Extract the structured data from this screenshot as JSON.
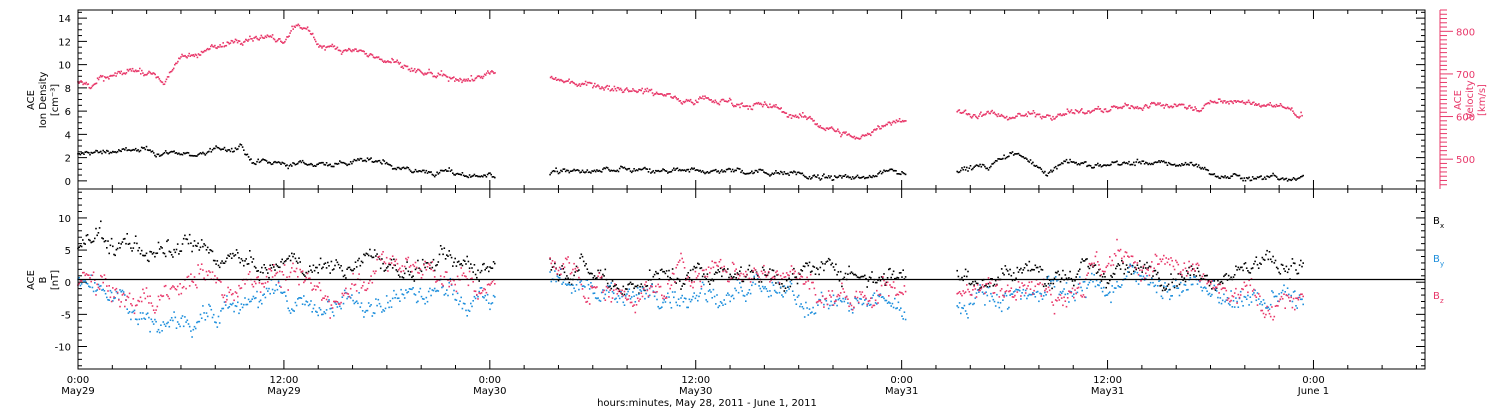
{
  "chart_data": [
    {
      "type": "scatter",
      "title": "",
      "xlabel": "hours:minutes, May 28, 2011 - June 1, 2011",
      "x_ticks": [
        {
          "hour": 0,
          "time": "0:00",
          "date": "May29"
        },
        {
          "hour": 12,
          "time": "12:00",
          "date": "May29"
        },
        {
          "hour": 24,
          "time": "0:00",
          "date": "May30"
        },
        {
          "hour": 36,
          "time": "12:00",
          "date": "May30"
        },
        {
          "hour": 48,
          "time": "0:00",
          "date": "May31"
        },
        {
          "hour": 60,
          "time": "12:00",
          "date": "May31"
        },
        {
          "hour": 72,
          "time": "0:00",
          "date": "June 1"
        }
      ],
      "xlim_hours": [
        0,
        78.5
      ],
      "data_gaps_hours": [
        [
          24.3,
          27.5
        ],
        [
          48.3,
          51.2
        ],
        [
          71.4,
          78.5
        ]
      ],
      "left_axis": {
        "ylabel_lines": [
          "ACE",
          "Ion Density",
          "[cm⁻³]"
        ],
        "ylim": [
          -0.7,
          14.7
        ],
        "ticks": [
          0,
          2,
          4,
          6,
          8,
          10,
          12,
          14
        ]
      },
      "right_axis": {
        "ylabel_lines": [
          "ACE",
          "Velocity",
          "[km/s]"
        ],
        "ylim": [
          430,
          850
        ],
        "ticks": [
          500,
          600,
          700,
          800
        ],
        "color": "#e8386a"
      },
      "series": [
        {
          "name": "",
          "axis": "left",
          "color": "#000000",
          "knots": [
            [
              0.0,
              2.2
            ],
            [
              1.0,
              2.5
            ],
            [
              3.0,
              2.6
            ],
            [
              5.0,
              2.4
            ],
            [
              7.0,
              2.3
            ],
            [
              9.0,
              2.8
            ],
            [
              9.5,
              3.2
            ],
            [
              10.0,
              1.6
            ],
            [
              12.0,
              1.4
            ],
            [
              14.0,
              1.5
            ],
            [
              16.0,
              1.6
            ],
            [
              18.0,
              1.7
            ],
            [
              18.6,
              1.2
            ],
            [
              20.0,
              0.8
            ],
            [
              22.0,
              0.6
            ],
            [
              24.0,
              0.5
            ],
            [
              27.5,
              0.8
            ],
            [
              30.0,
              0.8
            ],
            [
              32.0,
              0.9
            ],
            [
              34.0,
              0.7
            ],
            [
              36.0,
              0.8
            ],
            [
              38.0,
              0.9
            ],
            [
              40.0,
              0.8
            ],
            [
              42.0,
              0.8
            ],
            [
              43.0,
              0.2
            ],
            [
              46.0,
              0.3
            ],
            [
              46.5,
              0.8
            ],
            [
              48.0,
              0.9
            ],
            [
              51.2,
              1.2
            ],
            [
              53.0,
              1.1
            ],
            [
              54.5,
              2.4
            ],
            [
              55.5,
              1.6
            ],
            [
              56.5,
              0.7
            ],
            [
              57.5,
              1.8
            ],
            [
              59.0,
              1.2
            ],
            [
              61.0,
              1.6
            ],
            [
              63.0,
              1.4
            ],
            [
              65.0,
              1.5
            ],
            [
              66.5,
              0.4
            ],
            [
              68.0,
              0.3
            ],
            [
              71.4,
              0.4
            ]
          ],
          "noise": 0.25
        },
        {
          "name": "",
          "axis": "right",
          "color": "#e8386a",
          "knots": [
            [
              0.0,
              680
            ],
            [
              0.6,
              675
            ],
            [
              3.2,
              710
            ],
            [
              4.5,
              700
            ],
            [
              5.0,
              680
            ],
            [
              6.0,
              740
            ],
            [
              8.0,
              760
            ],
            [
              10.0,
              790
            ],
            [
              11.0,
              780
            ],
            [
              12.0,
              775
            ],
            [
              12.8,
              820
            ],
            [
              14.0,
              770
            ],
            [
              16.0,
              760
            ],
            [
              18.0,
              730
            ],
            [
              20.0,
              700
            ],
            [
              22.0,
              680
            ],
            [
              24.0,
              700
            ],
            [
              27.5,
              685
            ],
            [
              29.5,
              680
            ],
            [
              31.0,
              670
            ],
            [
              32.5,
              665
            ],
            [
              35.0,
              645
            ],
            [
              38.0,
              635
            ],
            [
              40.0,
              625
            ],
            [
              42.0,
              600
            ],
            [
              44.0,
              570
            ],
            [
              45.5,
              545
            ],
            [
              46.5,
              575
            ],
            [
              47.5,
              590
            ],
            [
              48.0,
              590
            ],
            [
              51.2,
              610
            ],
            [
              54.0,
              600
            ],
            [
              56.0,
              605
            ],
            [
              58.0,
              610
            ],
            [
              60.0,
              615
            ],
            [
              62.0,
              625
            ],
            [
              63.5,
              630
            ],
            [
              65.0,
              620
            ],
            [
              66.5,
              635
            ],
            [
              68.0,
              630
            ],
            [
              70.0,
              625
            ],
            [
              71.4,
              600
            ]
          ],
          "noise": 8
        }
      ]
    },
    {
      "type": "scatter",
      "title": "",
      "xlabel": "hours:minutes, May 28, 2011 - June 1, 2011",
      "xlim_hours": [
        0,
        78.5
      ],
      "ylabel_lines": [
        "ACE",
        "B",
        "[nT]"
      ],
      "ylim": [
        -13.5,
        14.5
      ],
      "ticks": [
        -10,
        -5,
        0,
        5,
        10
      ],
      "zero_line": true,
      "series": [
        {
          "name": "B",
          "subscript": "x",
          "color": "#000000",
          "knots": [
            [
              0.0,
              6.0
            ],
            [
              0.6,
              6.2
            ],
            [
              3.0,
              6.0
            ],
            [
              5.0,
              4.0
            ],
            [
              7.0,
              5.0
            ],
            [
              9.0,
              3.5
            ],
            [
              11.0,
              1.5
            ],
            [
              13.0,
              3.0
            ],
            [
              15.0,
              2.5
            ],
            [
              17.0,
              3.5
            ],
            [
              19.0,
              2.0
            ],
            [
              21.0,
              3.0
            ],
            [
              24.0,
              3.0
            ],
            [
              27.5,
              3.5
            ],
            [
              29.0,
              3.2
            ],
            [
              30.0,
              2.0
            ],
            [
              32.0,
              -0.5
            ],
            [
              34.0,
              1.0
            ],
            [
              36.0,
              1.5
            ],
            [
              38.0,
              2.0
            ],
            [
              40.0,
              1.5
            ],
            [
              42.0,
              1.0
            ],
            [
              44.0,
              2.0
            ],
            [
              46.0,
              1.5
            ],
            [
              48.0,
              1.5
            ],
            [
              51.2,
              0.5
            ],
            [
              53.0,
              1.0
            ],
            [
              55.0,
              2.0
            ],
            [
              57.0,
              1.5
            ],
            [
              59.0,
              1.0
            ],
            [
              61.0,
              1.8
            ],
            [
              63.0,
              2.0
            ],
            [
              65.0,
              1.5
            ],
            [
              67.0,
              2.0
            ],
            [
              69.0,
              2.5
            ],
            [
              71.4,
              3.0
            ]
          ],
          "noise": 1.6
        },
        {
          "name": "B",
          "subscript": "y",
          "color": "#1e8fdc",
          "knots": [
            [
              0.0,
              -0.8
            ],
            [
              0.6,
              -0.5
            ],
            [
              3.0,
              -4.5
            ],
            [
              5.0,
              -7.0
            ],
            [
              7.0,
              -5.0
            ],
            [
              9.0,
              -3.5
            ],
            [
              11.0,
              -2.0
            ],
            [
              13.0,
              -4.0
            ],
            [
              15.0,
              -3.0
            ],
            [
              17.0,
              -4.5
            ],
            [
              19.0,
              -2.5
            ],
            [
              21.0,
              -1.5
            ],
            [
              24.0,
              -3.5
            ],
            [
              27.5,
              1.0
            ],
            [
              29.0,
              -0.5
            ],
            [
              31.0,
              -1.5
            ],
            [
              33.0,
              -2.5
            ],
            [
              35.0,
              -1.0
            ],
            [
              37.0,
              -1.5
            ],
            [
              39.0,
              -2.0
            ],
            [
              41.0,
              -2.5
            ],
            [
              43.0,
              -3.0
            ],
            [
              45.0,
              -3.5
            ],
            [
              47.0,
              -3.5
            ],
            [
              48.0,
              -3.5
            ],
            [
              51.2,
              -3.0
            ],
            [
              53.0,
              -2.0
            ],
            [
              55.0,
              -1.5
            ],
            [
              57.0,
              -0.5
            ],
            [
              59.0,
              -1.0
            ],
            [
              61.0,
              1.0
            ],
            [
              63.0,
              0.0
            ],
            [
              65.0,
              -1.0
            ],
            [
              67.0,
              -3.0
            ],
            [
              69.0,
              -3.0
            ],
            [
              71.4,
              -2.5
            ]
          ],
          "noise": 1.8
        },
        {
          "name": "B",
          "subscript": "z",
          "color": "#e8386a",
          "knots": [
            [
              0.0,
              -0.5
            ],
            [
              0.6,
              0.0
            ],
            [
              3.0,
              -3.5
            ],
            [
              5.0,
              -2.0
            ],
            [
              7.0,
              1.5
            ],
            [
              9.0,
              -0.5
            ],
            [
              11.0,
              2.0
            ],
            [
              13.0,
              0.0
            ],
            [
              15.0,
              -2.5
            ],
            [
              17.0,
              2.0
            ],
            [
              19.0,
              3.0
            ],
            [
              21.0,
              1.0
            ],
            [
              24.0,
              -1.0
            ],
            [
              27.5,
              2.0
            ],
            [
              29.0,
              1.0
            ],
            [
              31.0,
              -1.5
            ],
            [
              33.0,
              -2.0
            ],
            [
              35.0,
              1.0
            ],
            [
              37.0,
              2.0
            ],
            [
              39.0,
              1.0
            ],
            [
              41.0,
              2.0
            ],
            [
              43.0,
              -2.0
            ],
            [
              45.0,
              -2.5
            ],
            [
              47.0,
              -1.0
            ],
            [
              48.0,
              -1.0
            ],
            [
              51.2,
              0.0
            ],
            [
              53.0,
              -2.0
            ],
            [
              55.0,
              2.0
            ],
            [
              57.0,
              -1.0
            ],
            [
              59.0,
              2.0
            ],
            [
              61.0,
              3.0
            ],
            [
              63.0,
              2.0
            ],
            [
              65.0,
              1.0
            ],
            [
              67.0,
              -2.5
            ],
            [
              69.0,
              -3.0
            ],
            [
              71.4,
              -2.0
            ]
          ],
          "noise": 2.0
        }
      ]
    }
  ]
}
